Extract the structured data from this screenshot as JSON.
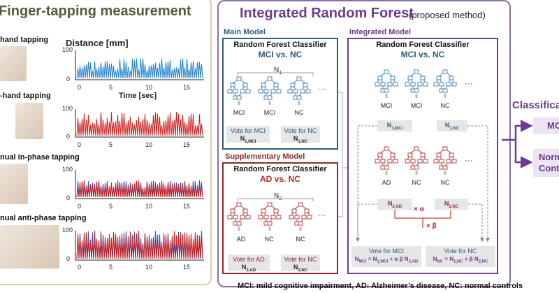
{
  "left": {
    "title": "Finger-tapping measurement",
    "tasks": [
      "hand tapping",
      "-hand tapping",
      "nual in-phase tapping",
      "nual anti-phase tapping"
    ],
    "y_axis_label": "Distance [mm]",
    "x_axis_label": "Time [sec]",
    "y_ticks": [
      "100",
      "0"
    ],
    "x_ticks": [
      "0",
      "5",
      "10",
      "15"
    ],
    "series_colors": {
      "first": "#1f7fd0",
      "second": "#cc1b1b",
      "mixed_a": "#2b55b8",
      "mixed_b": "#cc1b1b"
    }
  },
  "right": {
    "title": "Integrated Random Forest",
    "subtitle": "(proposed method)",
    "main_model": {
      "label": "Main Model",
      "classifier": "Random Forest Classifier",
      "comparison": "MCI vs. NC",
      "n_label": "N",
      "n_sub": "1",
      "leaf_labels": [
        "MCI",
        "MCI",
        "NC"
      ],
      "ellipsis": "···",
      "vote_mci": "Vote for MCI",
      "vote_mci_n": "N",
      "vote_mci_n_sub": "1,MCI",
      "vote_nc": "Vote for NC",
      "vote_nc_n": "N",
      "vote_nc_n_sub": "1,NC"
    },
    "supplementary_model": {
      "label": "Supplementary Model",
      "classifier": "Random Forest Classifier",
      "comparison": "AD vs. NC",
      "n_label": "N",
      "n_sub": "2",
      "leaf_labels": [
        "AD",
        "NC",
        "NC"
      ],
      "ellipsis": "···",
      "vote_ad": "Vote for AD",
      "vote_ad_n": "N",
      "vote_ad_n_sub": "2,AD",
      "vote_nc": "Vote for NC",
      "vote_nc_n": "N",
      "vote_nc_n_sub": "2,NC"
    },
    "integrated_model": {
      "label": "Integrated Model",
      "classifier": "Random Forest Classifier",
      "comparison": "MCI vs. NC",
      "top_leaf_labels": [
        "MCI",
        "MCI",
        "NC"
      ],
      "bottom_leaf_labels": [
        "AD",
        "NC",
        "NC"
      ],
      "ellipsis": "···",
      "n1mci": "N",
      "n1mci_sub": "1,MCI",
      "n1nc": "N",
      "n1nc_sub": "1,NC",
      "n2ad": "N",
      "n2ad_sub": "2,AD",
      "n2nc": "N",
      "n2nc_sub": "2,NC",
      "alpha": "× α",
      "beta": "× β",
      "vote_mci": "Vote for MCI",
      "vote_mci_formula": "N",
      "vote_mci_sub": "MCI",
      "vote_mci_eq": " = N",
      "vote_mci_eq_sub": "1,MCI",
      "vote_mci_rest": " + α β N",
      "vote_mci_rest_sub": "2,AD",
      "vote_nc": "Vote for NC",
      "vote_nc_formula": "N",
      "vote_nc_sub": "NC",
      "vote_nc_eq": " = N",
      "vote_nc_eq_sub": "1,NC",
      "vote_nc_rest": " + β N",
      "vote_nc_rest_sub": "2,NC"
    }
  },
  "classification": {
    "title": "Classifica",
    "out1": "MC",
    "out2_line1": "Norm",
    "out2_line2": "Cont"
  },
  "footnote": "MCI: mild cognitive impairment, AD: Alzheimer’s disease, NC: normal controls"
}
